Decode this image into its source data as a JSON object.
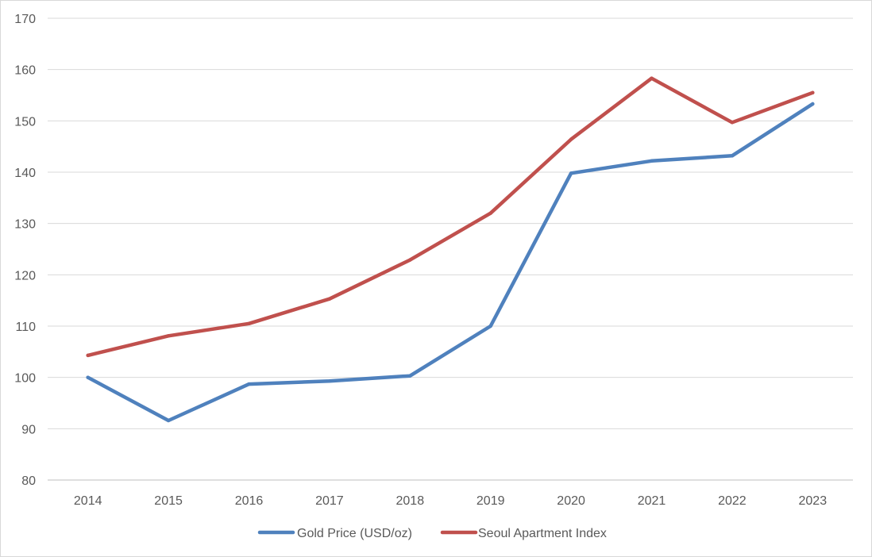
{
  "chart_data": {
    "type": "line",
    "title": "",
    "xlabel": "",
    "ylabel": "",
    "x": [
      "2014",
      "2015",
      "2016",
      "2017",
      "2018",
      "2019",
      "2020",
      "2021",
      "2022",
      "2023"
    ],
    "ylim": [
      80,
      170
    ],
    "yticks": [
      "80",
      "90",
      "100",
      "110",
      "120",
      "130",
      "140",
      "150",
      "160",
      "170"
    ],
    "grid": true,
    "legend_position": "bottom",
    "series": [
      {
        "name": "Gold Price (USD/oz)",
        "color": "#4f81bd",
        "values": [
          100,
          91.6,
          98.7,
          99.3,
          100.3,
          110,
          139.8,
          142.2,
          143.2,
          153.3
        ]
      },
      {
        "name": "Seoul Apartment Index",
        "color": "#c0504d",
        "values": [
          104.3,
          108.1,
          110.5,
          115.3,
          122.9,
          132,
          146.4,
          158.3,
          149.7,
          155.5
        ]
      }
    ]
  }
}
